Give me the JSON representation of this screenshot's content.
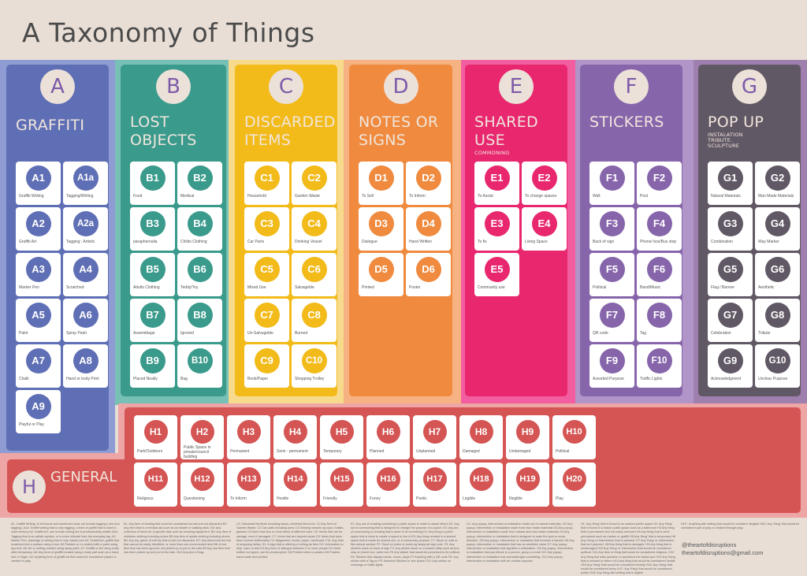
{
  "title": "A Taxonomy of Things",
  "categories": [
    {
      "letter": "A",
      "title": "GRAFFITI",
      "subtitle": "",
      "color": "#5f6fb5",
      "bg": "#8e9cd3",
      "items": [
        {
          "code": "A1",
          "label": "Graffiti Writing"
        },
        {
          "code": "A1a",
          "label": "Tagging/Writing"
        },
        {
          "code": "A2",
          "label": "Graffiti Art"
        },
        {
          "code": "A2a",
          "label": "Tagging : Artistic"
        },
        {
          "code": "A3",
          "label": "Marker Pen"
        },
        {
          "code": "A4",
          "label": "Scratched"
        },
        {
          "code": "A5",
          "label": "Paint"
        },
        {
          "code": "A6",
          "label": "Spray Paint"
        },
        {
          "code": "A7",
          "label": "Chalk"
        },
        {
          "code": "A8",
          "label": "Hand or body Print"
        },
        {
          "code": "A9",
          "label": "Playful or Play"
        }
      ]
    },
    {
      "letter": "B",
      "title": "LOST OBJECTS",
      "subtitle": "",
      "color": "#3a9a8c",
      "bg": "#76c0b6",
      "items": [
        {
          "code": "B1",
          "label": "Food"
        },
        {
          "code": "B2",
          "label": "Medical"
        },
        {
          "code": "B3",
          "label": "paraphernalia"
        },
        {
          "code": "B4",
          "label": "Childs Clothing"
        },
        {
          "code": "B5",
          "label": "Adults Clothing"
        },
        {
          "code": "B6",
          "label": "Teddy/Toy"
        },
        {
          "code": "B7",
          "label": "Assemblage"
        },
        {
          "code": "B8",
          "label": "Ignored"
        },
        {
          "code": "B9",
          "label": "Placed Neatly"
        },
        {
          "code": "B10",
          "label": "Bag"
        }
      ]
    },
    {
      "letter": "C",
      "title": "DISCARDED ITEMS",
      "subtitle": "",
      "color": "#f2bb1a",
      "bg": "#f8da8c",
      "items": [
        {
          "code": "C1",
          "label": "Household"
        },
        {
          "code": "C2",
          "label": "Garden Waste"
        },
        {
          "code": "C3",
          "label": "Car Parts"
        },
        {
          "code": "C4",
          "label": "Drinking Vessel"
        },
        {
          "code": "C5",
          "label": "Mixed Use"
        },
        {
          "code": "C6",
          "label": "Salvageble"
        },
        {
          "code": "C7",
          "label": "Un-Salvageble"
        },
        {
          "code": "C8",
          "label": "Burned"
        },
        {
          "code": "C9",
          "label": "Book/Paper"
        },
        {
          "code": "C10",
          "label": "Shopping Trolley"
        }
      ]
    },
    {
      "letter": "D",
      "title": "NOTES OR SIGNS",
      "subtitle": "",
      "color": "#ef8a3e",
      "bg": "#f6b283",
      "items": [
        {
          "code": "D1",
          "label": "To Sell"
        },
        {
          "code": "D2",
          "label": "To Inform"
        },
        {
          "code": "D3",
          "label": "Dialogue"
        },
        {
          "code": "D4",
          "label": "Hand Written"
        },
        {
          "code": "D5",
          "label": "Printed"
        },
        {
          "code": "D6",
          "label": "Poster"
        }
      ]
    },
    {
      "letter": "E",
      "title": "SHARED USE",
      "subtitle": "COMMONING",
      "color": "#e8276f",
      "bg": "#f25ea0",
      "items": [
        {
          "code": "E1",
          "label": "To Assist"
        },
        {
          "code": "E2",
          "label": "To change spaces"
        },
        {
          "code": "E3",
          "label": "To fix"
        },
        {
          "code": "E4",
          "label": "Living Space"
        },
        {
          "code": "E5",
          "label": "Community use"
        }
      ]
    },
    {
      "letter": "F",
      "title": "STICKERS",
      "subtitle": "",
      "color": "#8765ab",
      "bg": "#b194c8",
      "items": [
        {
          "code": "F1",
          "label": "Wall"
        },
        {
          "code": "F2",
          "label": "Post"
        },
        {
          "code": "F3",
          "label": "Back of sign"
        },
        {
          "code": "F4",
          "label": "Phone/ box/Bus stop"
        },
        {
          "code": "F5",
          "label": "Political"
        },
        {
          "code": "F6",
          "label": "Band/Music"
        },
        {
          "code": "F7",
          "label": "QR code"
        },
        {
          "code": "F8",
          "label": "Tag"
        },
        {
          "code": "F9",
          "label": "Assorted Purpose"
        },
        {
          "code": "F10",
          "label": "Traffic Lights"
        }
      ]
    },
    {
      "letter": "G",
      "title": "POP UP",
      "subtitle": "INSTALATION TRIBUTE. SCULPTURE",
      "color": "#615865",
      "bg": "#9f7fae",
      "items": [
        {
          "code": "G1",
          "label": "Natural Materials"
        },
        {
          "code": "G2",
          "label": "Man Made Materials"
        },
        {
          "code": "G3",
          "label": "Combination"
        },
        {
          "code": "G4",
          "label": "Way Marker"
        },
        {
          "code": "G5",
          "label": "Flag / Banner"
        },
        {
          "code": "G6",
          "label": "Aesthetic"
        },
        {
          "code": "G7",
          "label": "Celebration"
        },
        {
          "code": "G8",
          "label": "Tribute"
        },
        {
          "code": "G9",
          "label": "Acknowledgment"
        },
        {
          "code": "G10",
          "label": "Unclear Purpose"
        }
      ]
    }
  ],
  "general": {
    "letter": "H",
    "title": "GENERAL",
    "color": "#d45553",
    "items": [
      {
        "code": "H1",
        "label": "Park/Outdoors"
      },
      {
        "code": "H2",
        "label": "Public Space in private/council building"
      },
      {
        "code": "H3",
        "label": "Permanent"
      },
      {
        "code": "H4",
        "label": "Semi - permanent"
      },
      {
        "code": "H5",
        "label": "Temporary"
      },
      {
        "code": "H6",
        "label": "Planned"
      },
      {
        "code": "H7",
        "label": "Unplanned"
      },
      {
        "code": "H8",
        "label": "Damaged"
      },
      {
        "code": "H9",
        "label": "Undamaged"
      },
      {
        "code": "H10",
        "label": "Political"
      },
      {
        "code": "H11",
        "label": "Religious"
      },
      {
        "code": "H12",
        "label": "Questioning"
      },
      {
        "code": "H13",
        "label": "To Inform"
      },
      {
        "code": "H14",
        "label": "Hostile"
      },
      {
        "code": "H15",
        "label": "Friendly"
      },
      {
        "code": "H16",
        "label": "Funny"
      },
      {
        "code": "H17",
        "label": "Poetic"
      },
      {
        "code": "H18",
        "label": "Legible"
      },
      {
        "code": "H19",
        "label": "Illegible"
      },
      {
        "code": "H20",
        "label": "Play."
      }
    ]
  },
  "notes": [
    "A1. Graffiti Writing: is full words and sentences does not include tagging ( see A1a tagging). A1a: Graffiti writing that is only tagging, a form of graffiti that is used to mark territory A2: Graffiti Art, can include writing but is predominantly artistic A2a: Tagging that is an artistic symbol, or is more intricate than the everyday tag. A3: Marker Pen, drawings or writing that is only marker pen A4: Scratched, graffiti that scratched into a surface using a tool. A5 Painted on or created with a paint using any tool. A6: Art or writing created using spray paint. A7: Graffiti or Art using chalk, often temporary. A8: Any form of graffiti created using a body part such as a hand, foot or finger. A9: Anything form of graffiti art that would be considered playful or created in play.",
    "B1. Any item of fooding that could be considered as lost and not discarded B2: Any item that is a medical aid such as an inhaler or walking stick. B3: Any collection of items for a specific task such as smoking equipment. B4: Any item of childrens clothing including shoes B5 Any item of adults clothing including shoes B6: Any toy, game of soft toy that is lost not discarded. B7: Any items that are lost that cannot be easily identified, or more than one unconnected item B8: A lost item that has been ignored, not picked up or put to the side B9 Any lost item that has been picked up and put to the side. B10 Any kind of bag.",
    "C1: Discarded furniture including lamps, electrical items etc. C2 Any form of Garden Waste. C3 Car parts including tyres C4 Drinking vessels eg cups, bottles, glasses C5 More than two or more items of different uses. C6: Items that can be salvage, even if damaged. C7: Items that are beyond repair C8: Items that have been burned deliberately C9: Magazines, books, paper, cardboard C10, Any form of shopping trolley. D1: A sign that is offering or selling an item D2: Information to help, warn or Ask D3 Any form of dialogue between 2 or more people D4 Hand written not typed, can be photocopied. D5 Printed notes or posters D6 Posters hand made and printed.",
    "E1: Any act of creating something in public space is made to assist others E2: Any act of commoning that is designed to change the purpose of a space. E3: Any act of commoning or creating that is done to fix something E4: Any thing in public space that is done to create a space to live in E5: Any thing created in a shared space that is made for shared use, or a community purpose. F1: Stuck on wall or flat vertical surface F2: Stuck on poles or posts eg lamppost sign pole. F3: Any stickers stuck on back of sign F4: Any sticker stuck on a shared utility such as bus stop or phone box, cable box F5 Any sticker that would be perceived to be political. F6: Stickers that display bands, music, plays F7 Anything with a QR code F8: Any sticker with a Tag on F9: Assorted Stickers in one space F10: Any sticker on crossings or traffic lights",
    "G1. Any popup, intervention or instalation made out of natural materials. G2 Any popup, intervention or instalation made from man made materials G3 Any popup, intervention or instalation made from natural and man made materials G4 Any popup, intervention or instalation that is designed to mark the spot or show direction. G5 Any popup, intervention or instalation that includes a banner G6 Any popup, intervention or instalation that has an aesthetic value G7: Any popup, intervention or instalation that signifies a celebration. G8 Any popup, intervention or instalation that pay tribute to a person, group or event G9: Any popup, intervention or instalation that acknowledges something. G10 Any popup, intervention or instalation with an unclear purpose.",
    "H1. Any 'thing' that is found in an outdoor public space H2. Any 'thing' that is found in a indoor public space such as a bathroom H3 Any thing that is permanent and not easily removed H4 Any thing that is semi permanent such as marker or graffiti H5 Any 'thing' that is temporary H6 Any 'thing' or intervention that is planned. H7 Any 'thing' or intervention that isn't planned. H8 Any thing that is damaged. H9 Any thing that is undamaged H10 Any 'thing' or intervention that would be considered political. H11 Any item or thing that would be considered religious. H12 Any thing that asks question or questions the status quo H13 Any 'thing' that is created to inform H14 Any thing that would be considered hostile H15 Any 'thing' that would be considered friendly H16: Any 'thing' that would be considered funny H17: Any 'thing' that would be considered poetic H18: Any thing with writing that is legible",
    "H19 : Anything with writing that would be considere illegible H20: Any 'thing' that would be considered part of play or created through play."
  ],
  "contact": {
    "handle": "@theartofdisruptions",
    "email": "theartofdisruptions@gmail.com"
  }
}
